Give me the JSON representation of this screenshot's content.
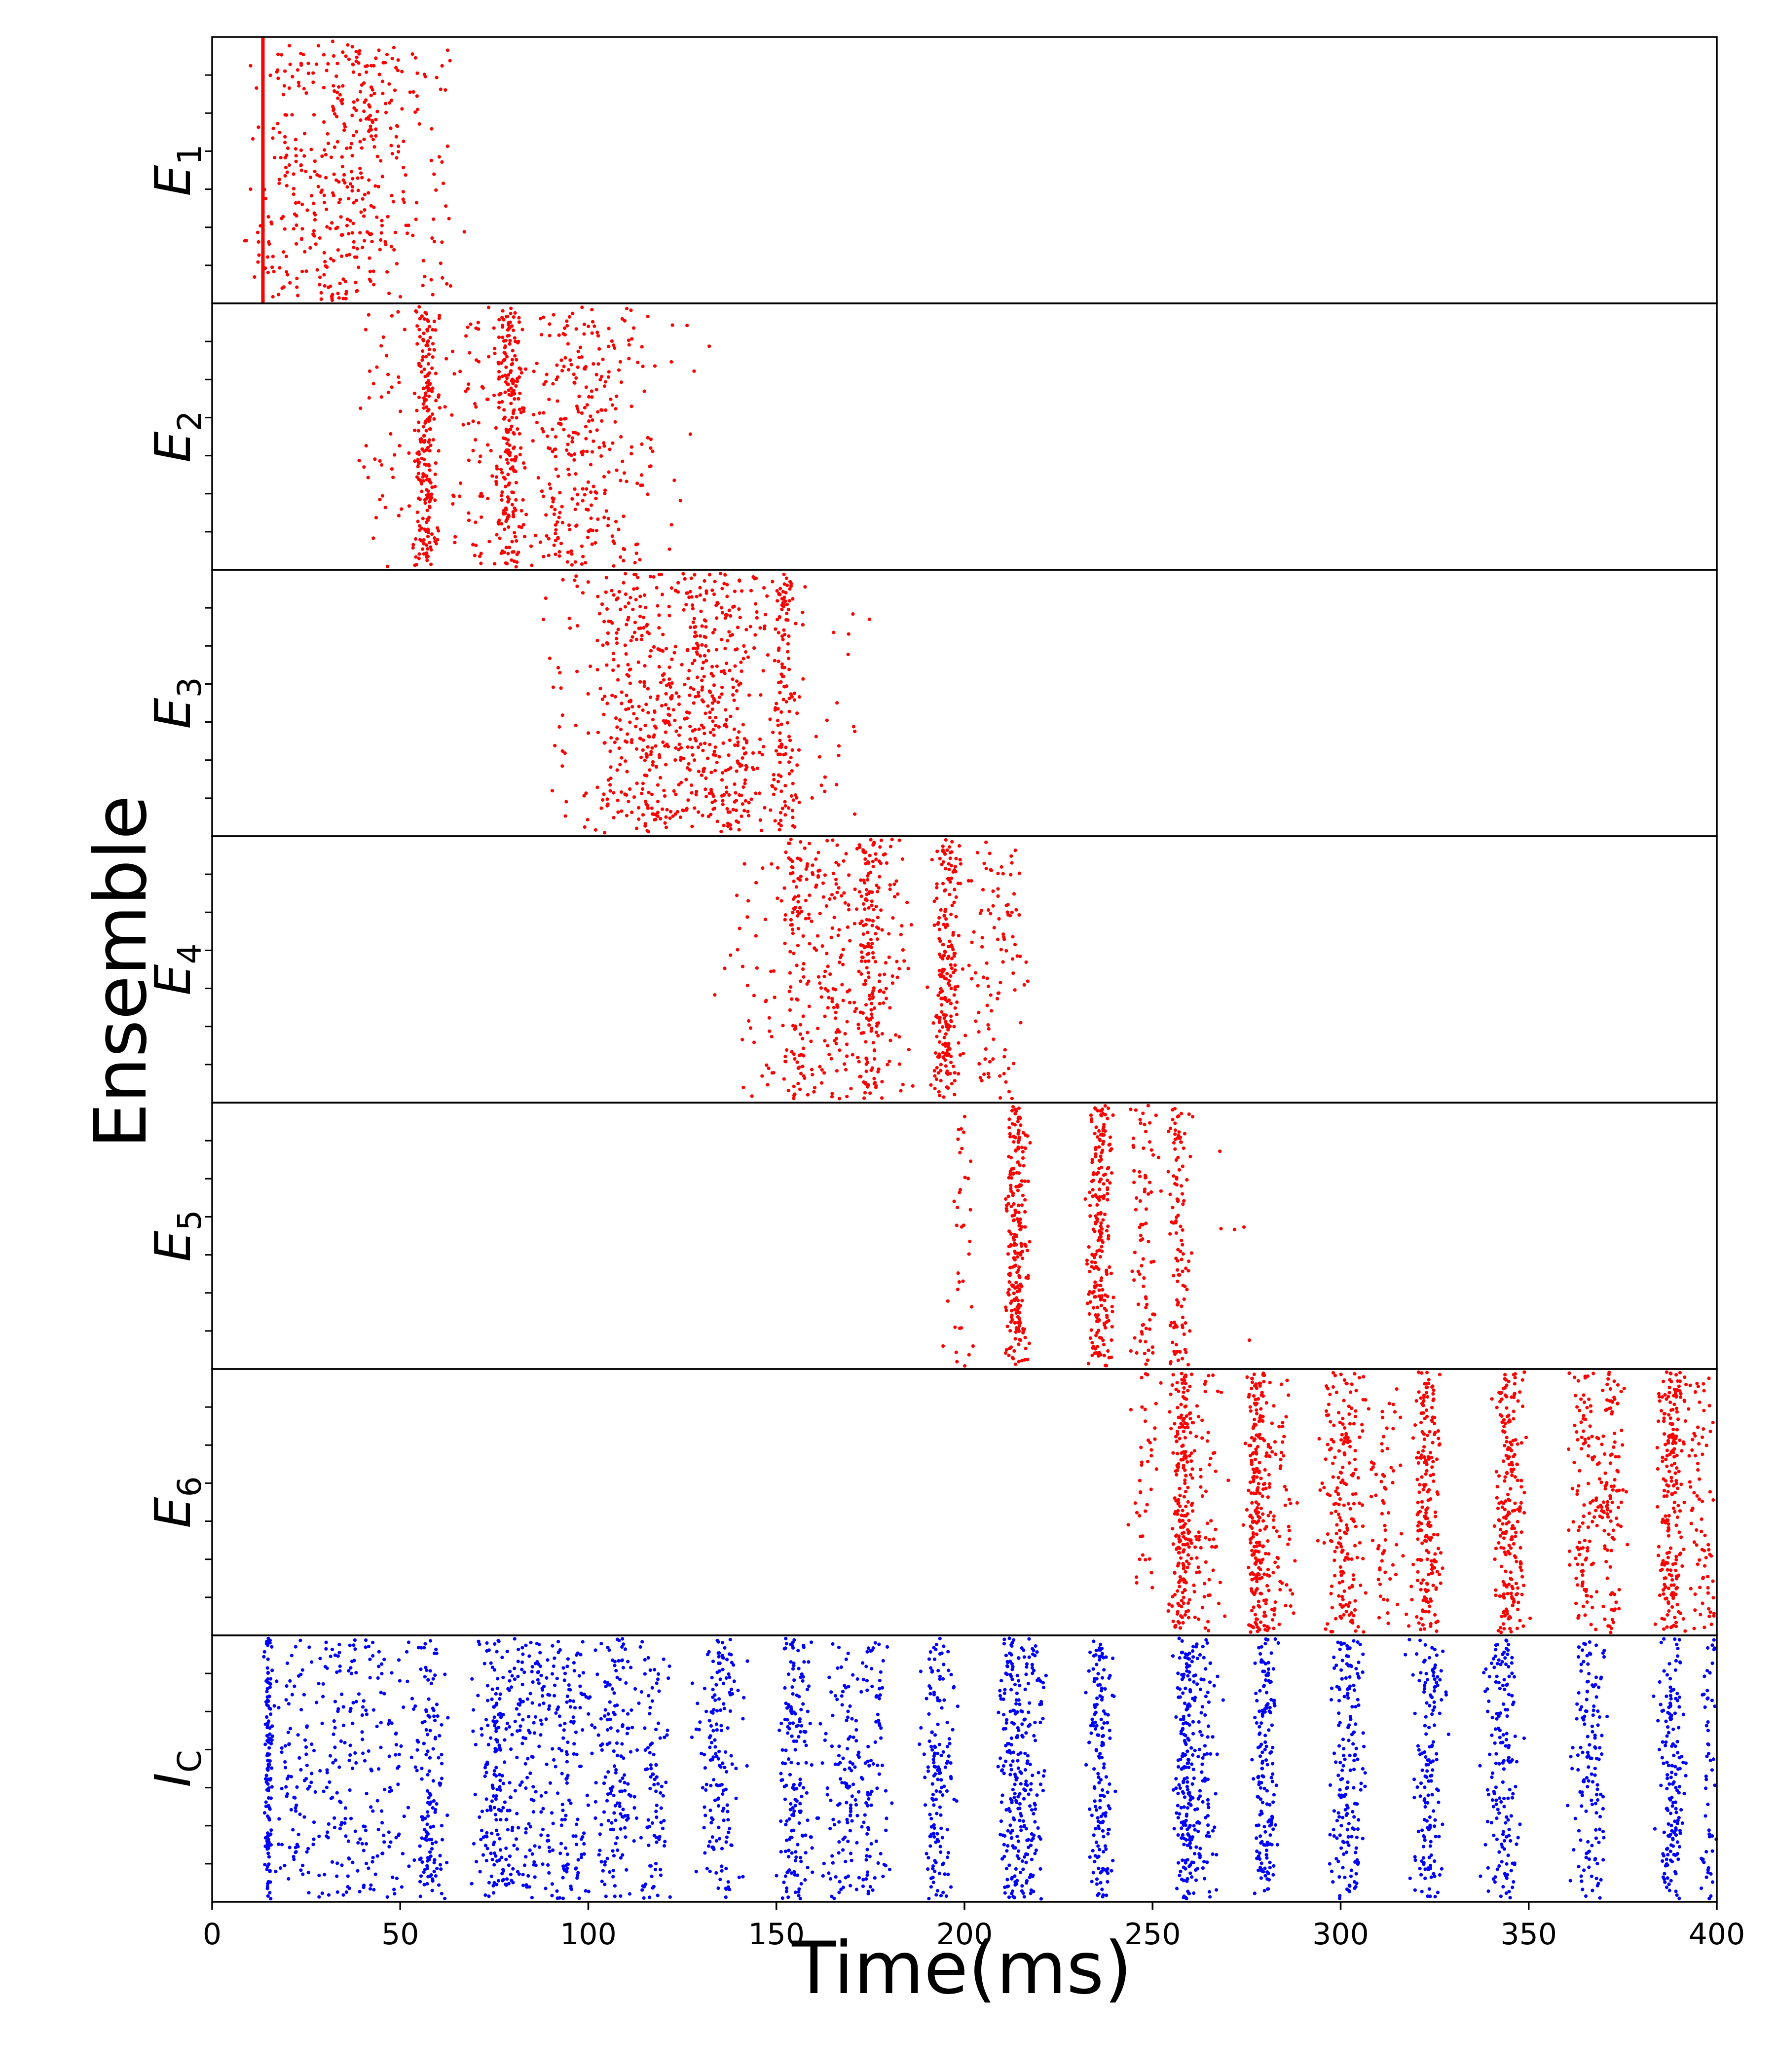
{
  "chart_data": {
    "type": "scatter",
    "subtype": "raster",
    "xlabel": "Time(ms)",
    "ylabel": "Ensemble",
    "xlim": [
      0,
      400
    ],
    "xticks": [
      0,
      50,
      100,
      150,
      200,
      250,
      300,
      350,
      400
    ],
    "grid": false,
    "marker_colors": {
      "excitatory": "#ff0000",
      "inhibitory": "#0000ff"
    },
    "ensembles": [
      {
        "base": "E",
        "sub": "1",
        "color": "#ff0000",
        "sync_line_ms": 13.5,
        "clusters": [
          [
            17,
            6,
            70
          ],
          [
            27,
            8,
            110
          ],
          [
            38,
            8,
            160
          ],
          [
            48,
            8,
            90
          ],
          [
            60,
            5,
            25
          ]
        ]
      },
      {
        "base": "E",
        "sub": "2",
        "color": "#ff0000",
        "sync_line_ms": null,
        "clusters": [
          [
            45,
            5,
            40
          ],
          [
            57,
            2.2,
            230
          ],
          [
            70,
            6,
            70
          ],
          [
            79,
            2.5,
            230
          ],
          [
            93,
            6,
            150
          ],
          [
            103,
            5,
            110
          ],
          [
            113,
            4,
            40
          ],
          [
            125,
            4,
            10
          ]
        ]
      },
      {
        "base": "E",
        "sub": "3",
        "color": "#ff0000",
        "sync_line_ms": null,
        "clusters": [
          [
            95,
            6,
            30
          ],
          [
            108,
            5,
            130
          ],
          [
            118,
            6,
            180
          ],
          [
            130,
            6,
            200
          ],
          [
            140,
            6,
            160
          ],
          [
            152,
            3,
            140
          ],
          [
            165,
            6,
            20
          ]
        ]
      },
      {
        "base": "E",
        "sub": "4",
        "color": "#ff0000",
        "sync_line_ms": null,
        "clusters": [
          [
            145,
            6,
            40
          ],
          [
            156,
            3,
            120
          ],
          [
            165,
            4,
            110
          ],
          [
            175,
            2.5,
            170
          ],
          [
            181,
            3,
            50
          ],
          [
            195,
            2.5,
            220
          ],
          [
            206,
            3,
            50
          ],
          [
            212,
            3,
            50
          ]
        ]
      },
      {
        "base": "E",
        "sub": "5",
        "color": "#ff0000",
        "sync_line_ms": null,
        "clusters": [
          [
            200,
            4,
            35
          ],
          [
            214,
            2,
            230
          ],
          [
            236,
            2.2,
            230
          ],
          [
            248,
            2.5,
            80
          ],
          [
            257,
            2,
            110
          ],
          [
            270,
            5,
            5
          ]
        ]
      },
      {
        "base": "E",
        "sub": "6",
        "color": "#ff0000",
        "sync_line_ms": null,
        "clusters": [
          [
            248,
            3,
            40
          ],
          [
            258,
            2,
            220
          ],
          [
            264,
            3,
            60
          ],
          [
            278,
            2,
            230
          ],
          [
            284,
            3,
            70
          ],
          [
            301,
            4,
            200
          ],
          [
            312,
            3,
            60
          ],
          [
            323,
            2.5,
            200
          ],
          [
            345,
            2.8,
            220
          ],
          [
            365,
            3,
            110
          ],
          [
            372,
            3,
            110
          ],
          [
            388,
            2.5,
            220
          ],
          [
            396,
            3,
            80
          ]
        ]
      },
      {
        "base": "I",
        "sub": "C",
        "color": "#0000ff",
        "sync_line_ms": null,
        "clusters": [
          [
            15,
            0.6,
            130
          ],
          [
            22,
            4,
            90
          ],
          [
            35,
            6,
            120
          ],
          [
            45,
            5,
            90
          ],
          [
            58,
            3,
            140
          ],
          [
            75,
            4,
            170
          ],
          [
            85,
            5,
            150
          ],
          [
            95,
            5,
            130
          ],
          [
            107,
            4,
            150
          ],
          [
            118,
            3,
            90
          ],
          [
            135,
            4,
            160
          ],
          [
            155,
            3,
            170
          ],
          [
            168,
            4,
            120
          ],
          [
            176,
            3,
            80
          ],
          [
            193,
            3,
            150
          ],
          [
            213,
            2.5,
            180
          ],
          [
            218,
            2.5,
            100
          ],
          [
            236,
            2,
            160
          ],
          [
            259,
            2,
            200
          ],
          [
            264,
            3,
            80
          ],
          [
            280,
            2,
            160
          ],
          [
            302,
            3,
            170
          ],
          [
            323,
            3,
            150
          ],
          [
            343,
            3,
            160
          ],
          [
            366,
            3,
            140
          ],
          [
            388,
            2.5,
            160
          ],
          [
            398,
            2,
            60
          ]
        ]
      }
    ]
  }
}
